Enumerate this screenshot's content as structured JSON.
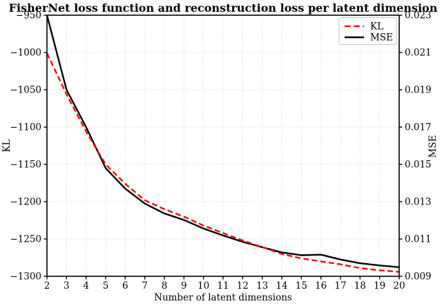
{
  "chart_data": {
    "type": "line",
    "title": "FisherNet loss function and reconstruction loss per latent dimension",
    "xlabel": "Number of latent dimensions",
    "grid": true,
    "x": [
      2,
      3,
      4,
      5,
      6,
      7,
      8,
      9,
      10,
      11,
      12,
      13,
      14,
      15,
      16,
      17,
      18,
      19,
      20
    ],
    "x_ticks": [
      2,
      3,
      4,
      5,
      6,
      7,
      8,
      9,
      10,
      11,
      12,
      13,
      14,
      15,
      16,
      17,
      18,
      19,
      20
    ],
    "xlim": [
      2,
      20
    ],
    "left_axis": {
      "label": "KL",
      "lim": [
        -1300,
        -950
      ],
      "ticks": [
        -950,
        -1000,
        -1050,
        -1100,
        -1150,
        -1200,
        -1250,
        -1300
      ]
    },
    "right_axis": {
      "label": "MSE",
      "lim": [
        0.009,
        0.023
      ],
      "ticks": [
        0.023,
        0.021,
        0.019,
        0.017,
        0.015,
        0.013,
        0.011,
        0.009
      ],
      "tick_decimals": 3
    },
    "series": [
      {
        "name": "MSE",
        "axis": "right",
        "color": "#000000",
        "style": "solid",
        "values": [
          0.023,
          0.019,
          0.017,
          0.0148,
          0.0137,
          0.0129,
          0.01237,
          0.01202,
          0.01156,
          0.01119,
          0.01085,
          0.01056,
          0.01028,
          0.01013,
          0.01016,
          0.0099,
          0.0097,
          0.00958,
          0.00949
        ]
      },
      {
        "name": "KL",
        "axis": "left",
        "color": "#ee0a0a",
        "style": "dashed",
        "values": [
          -1001,
          -1056,
          -1106,
          -1150,
          -1176,
          -1198,
          -1210,
          -1220,
          -1232,
          -1242,
          -1252,
          -1261,
          -1270,
          -1276,
          -1280,
          -1284,
          -1289,
          -1292,
          -1294
        ]
      }
    ],
    "legend": {
      "position": "upper right",
      "items": [
        {
          "label": "KL",
          "color": "#ee0a0a",
          "style": "dashed"
        },
        {
          "label": "MSE",
          "color": "#000000",
          "style": "solid"
        }
      ]
    },
    "colors": {
      "grid": "#c9c9c9",
      "spine": "#000000",
      "background": "#ffffff",
      "legend_border": "#cccccc"
    }
  }
}
